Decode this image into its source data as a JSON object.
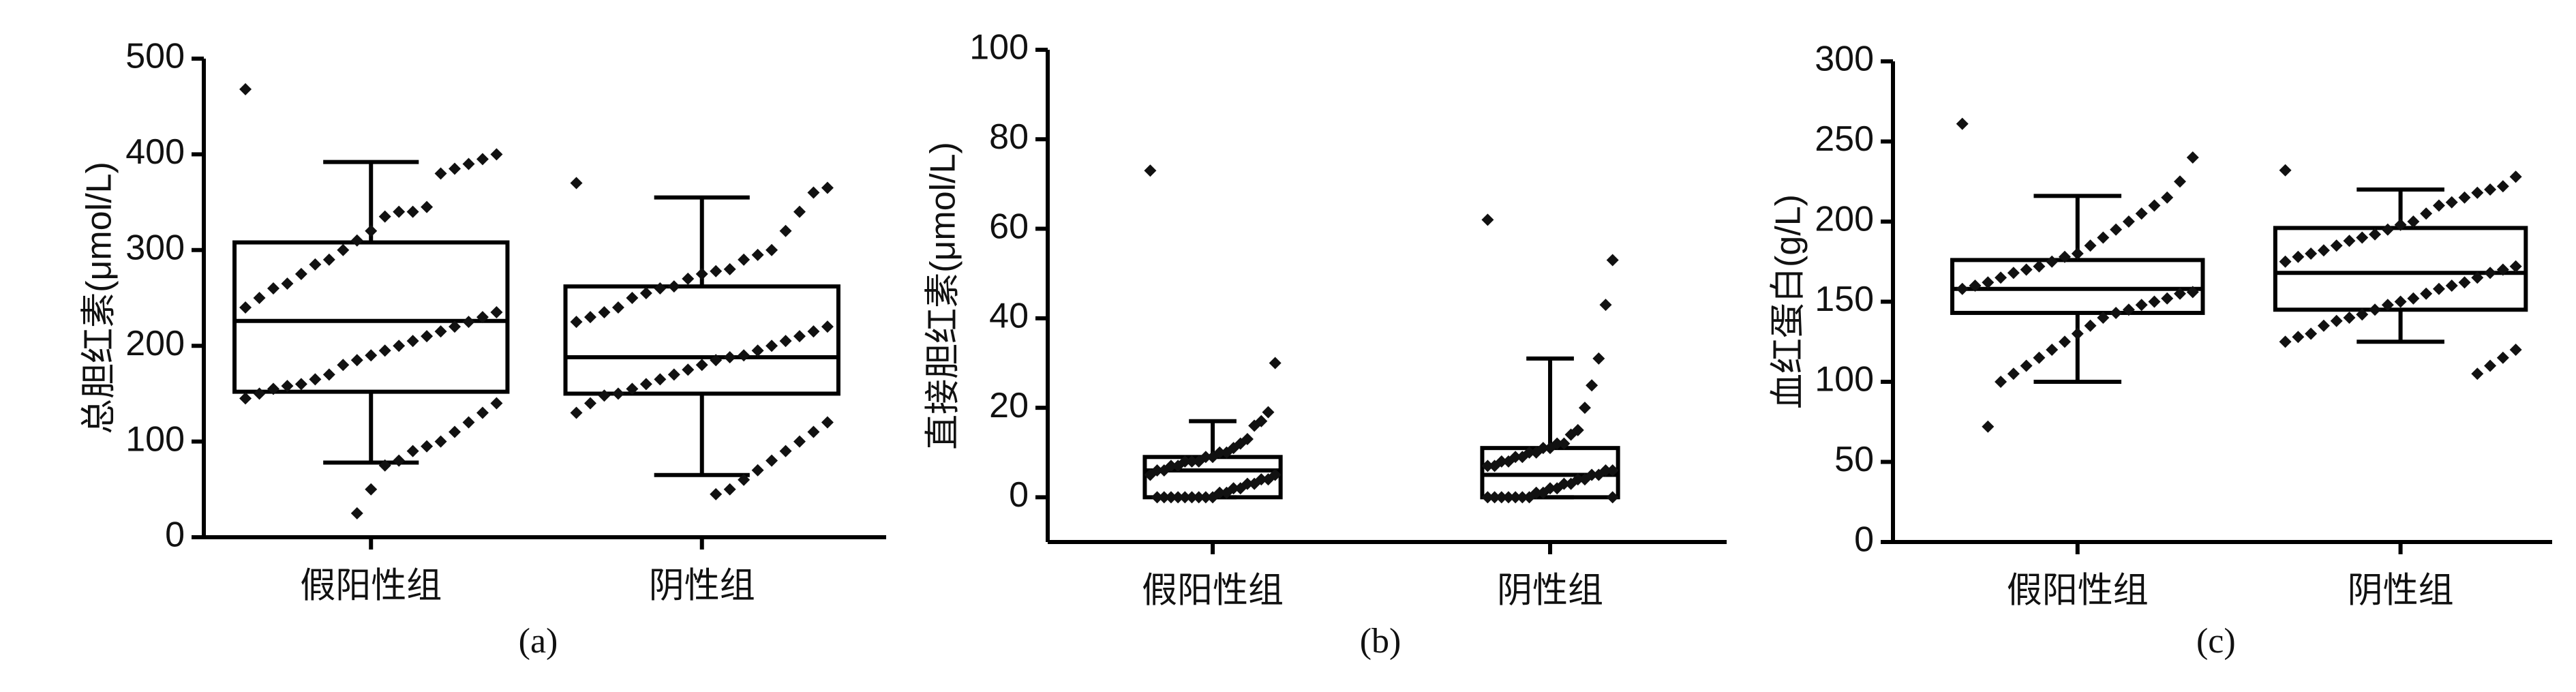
{
  "chart_data": [
    {
      "type": "box",
      "ylabel": "总胆红素(μmol/L)",
      "caption": "(a)",
      "categories": [
        "假阳性组",
        "阴性组"
      ],
      "ylim": [
        0,
        500
      ],
      "yticks": [
        0,
        100,
        200,
        300,
        400,
        500
      ],
      "boxes": [
        {
          "min": 78,
          "q1": 152,
          "median": 226,
          "q3": 308,
          "max": 392,
          "points": [
            468,
            400,
            395,
            390,
            385,
            380,
            345,
            340,
            340,
            335,
            320,
            310,
            300,
            290,
            285,
            275,
            265,
            260,
            250,
            240,
            235,
            230,
            225,
            220,
            215,
            210,
            205,
            200,
            195,
            190,
            185,
            180,
            170,
            165,
            160,
            158,
            155,
            150,
            145,
            140,
            130,
            120,
            110,
            100,
            95,
            90,
            80,
            75,
            50,
            25
          ]
        },
        {
          "min": 65,
          "q1": 150,
          "median": 188,
          "q3": 262,
          "max": 355,
          "points": [
            370,
            365,
            360,
            340,
            320,
            300,
            295,
            290,
            280,
            278,
            275,
            270,
            262,
            260,
            255,
            250,
            240,
            235,
            230,
            225,
            220,
            215,
            210,
            205,
            200,
            195,
            190,
            188,
            185,
            180,
            175,
            170,
            165,
            160,
            155,
            150,
            148,
            140,
            130,
            120,
            110,
            100,
            90,
            80,
            70,
            60,
            50,
            45
          ]
        }
      ]
    },
    {
      "type": "box",
      "ylabel": "直接胆红素(μmol/L)",
      "caption": "(b)",
      "categories": [
        "假阳性组",
        "阴性组"
      ],
      "ylim": [
        -10,
        100
      ],
      "yticks": [
        0,
        20,
        40,
        60,
        80,
        100
      ],
      "boxes": [
        {
          "min": 0,
          "q1": 0,
          "median": 6,
          "q3": 9,
          "max": 17,
          "points": [
            73,
            30,
            19,
            17,
            16,
            13,
            12,
            11,
            10,
            10,
            9,
            9,
            8,
            8,
            8,
            7,
            7,
            6,
            6,
            5,
            5,
            4,
            4,
            3,
            3,
            2,
            2,
            1,
            1,
            0,
            0,
            0,
            0,
            0,
            0,
            0,
            0,
            0
          ]
        },
        {
          "min": 0,
          "q1": 0,
          "median": 5,
          "q3": 11,
          "max": 31,
          "points": [
            62,
            53,
            43,
            31,
            25,
            20,
            15,
            14,
            12,
            12,
            11,
            11,
            10,
            10,
            9,
            9,
            8,
            8,
            7,
            7,
            6,
            6,
            5,
            5,
            4,
            4,
            3,
            3,
            2,
            2,
            1,
            1,
            0,
            0,
            0,
            0,
            0,
            0,
            0,
            0
          ]
        }
      ]
    },
    {
      "type": "box",
      "ylabel": "血红蛋白(g/L)",
      "caption": "(c)",
      "categories": [
        "假阳性组",
        "阴性组"
      ],
      "ylim": [
        0,
        300
      ],
      "yticks": [
        0,
        50,
        100,
        150,
        200,
        250,
        300
      ],
      "boxes": [
        {
          "min": 100,
          "q1": 143,
          "median": 158,
          "q3": 176,
          "max": 216,
          "points": [
            261,
            240,
            225,
            215,
            210,
            205,
            200,
            195,
            190,
            185,
            180,
            178,
            175,
            172,
            170,
            168,
            165,
            162,
            160,
            158,
            156,
            155,
            152,
            150,
            148,
            145,
            143,
            140,
            135,
            130,
            125,
            120,
            115,
            110,
            105,
            100,
            72
          ]
        },
        {
          "min": 125,
          "q1": 145,
          "median": 168,
          "q3": 196,
          "max": 220,
          "points": [
            232,
            228,
            222,
            220,
            218,
            215,
            212,
            210,
            205,
            200,
            198,
            195,
            192,
            190,
            188,
            185,
            182,
            180,
            178,
            175,
            172,
            170,
            168,
            165,
            162,
            160,
            158,
            155,
            152,
            150,
            148,
            145,
            142,
            140,
            138,
            135,
            130,
            128,
            125,
            120,
            115,
            110,
            105
          ]
        }
      ]
    }
  ]
}
